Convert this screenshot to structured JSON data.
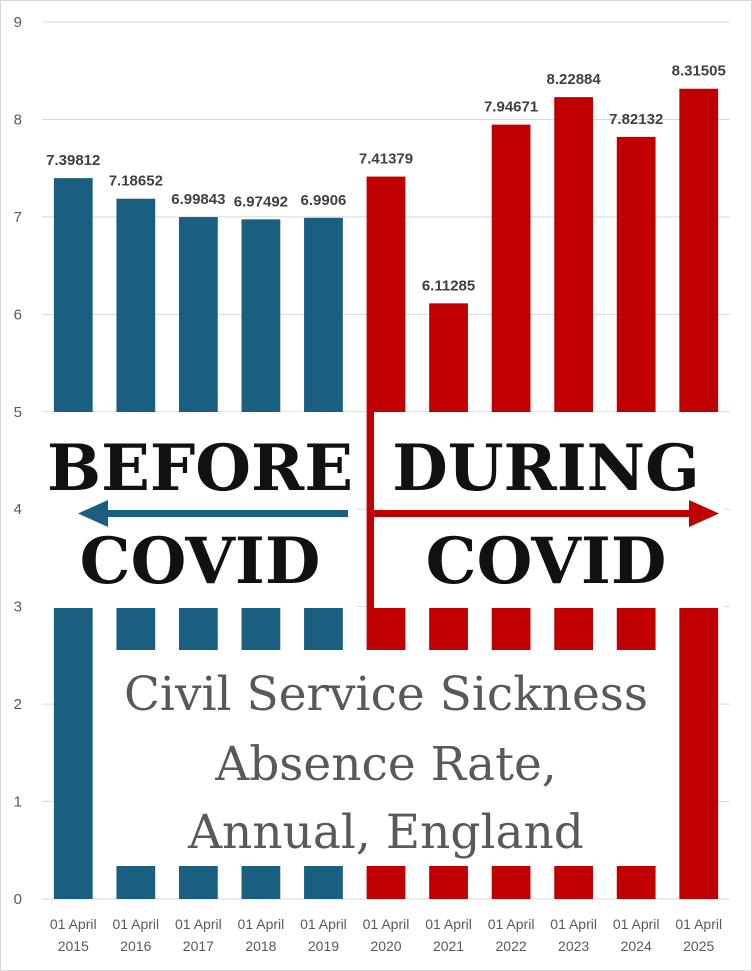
{
  "chart_data": {
    "type": "bar",
    "categories": [
      "01 April 2015",
      "01 April 2016",
      "01 April 2017",
      "01 April 2018",
      "01 April 2019",
      "01 April 2020",
      "01 April 2021",
      "01 April 2022",
      "01 April 2023",
      "01 April 2024",
      "01 April 2025"
    ],
    "category_lines": [
      [
        "01 April",
        "2015"
      ],
      [
        "01 April",
        "2016"
      ],
      [
        "01 April",
        "2017"
      ],
      [
        "01 April",
        "2018"
      ],
      [
        "01 April",
        "2019"
      ],
      [
        "01 April",
        "2020"
      ],
      [
        "01 April",
        "2021"
      ],
      [
        "01 April",
        "2022"
      ],
      [
        "01 April",
        "2023"
      ],
      [
        "01 April",
        "2024"
      ],
      [
        "01 April",
        "2025"
      ]
    ],
    "values": [
      7.39812,
      7.18652,
      6.99843,
      6.97492,
      6.9906,
      7.41379,
      6.11285,
      7.94671,
      8.22884,
      7.82132,
      8.31505
    ],
    "value_labels": [
      "7.39812",
      "7.18652",
      "6.99843",
      "6.97492",
      "6.9906",
      "7.41379",
      "6.11285",
      "7.94671",
      "8.22884",
      "7.82132",
      "8.31505"
    ],
    "ylim": [
      0,
      9
    ],
    "yticks": [
      0,
      1,
      2,
      3,
      4,
      5,
      6,
      7,
      8,
      9
    ],
    "grid": true,
    "colors": {
      "before": "#1a5f80",
      "during": "#c00000"
    },
    "period_split_index": 5,
    "title_lines": [
      "Civil Service Sickness",
      "Absence Rate,",
      "Annual, England"
    ],
    "annotations": {
      "before": [
        "BEFORE",
        "COVID"
      ],
      "during": [
        "DURING",
        "COVID"
      ]
    }
  }
}
